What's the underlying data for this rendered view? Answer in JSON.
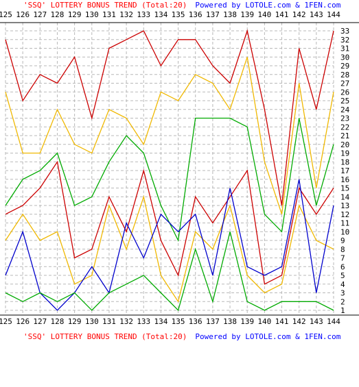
{
  "chart_data": {
    "type": "line",
    "title": "'SSQ' LOTTERY BONUS TREND (Total:20)",
    "title_suffix": "Powered by LOTOLE.com & 1FEN.com",
    "x": [
      "125",
      "126",
      "127",
      "128",
      "129",
      "130",
      "131",
      "132",
      "133",
      "134",
      "135",
      "136",
      "137",
      "138",
      "139",
      "140",
      "141",
      "142",
      "143",
      "144"
    ],
    "yticks": [
      "1",
      "2",
      "3",
      "4",
      "5",
      "6",
      "7",
      "8",
      "9",
      "10",
      "11",
      "12",
      "13",
      "14",
      "15",
      "16",
      "17",
      "18",
      "19",
      "20",
      "21",
      "22",
      "23",
      "24",
      "25",
      "26",
      "27",
      "28",
      "29",
      "30",
      "31",
      "32",
      "33"
    ],
    "ylim": [
      1,
      33
    ],
    "grid": true,
    "series": [
      {
        "color": "#cc0000",
        "values": [
          32,
          25,
          28,
          27,
          30,
          23,
          31,
          32,
          33,
          29,
          32,
          32,
          29,
          27,
          33,
          24,
          13,
          31,
          24,
          33
        ]
      },
      {
        "color": "#f0b800",
        "values": [
          26,
          19,
          19,
          24,
          20,
          19,
          24,
          23,
          20,
          26,
          25,
          28,
          27,
          24,
          30,
          18,
          12,
          27,
          15,
          26
        ]
      },
      {
        "color": "#00aa00",
        "values": [
          13,
          16,
          17,
          19,
          13,
          14,
          18,
          21,
          19,
          13,
          9,
          23,
          23,
          23,
          22,
          12,
          10,
          23,
          13,
          20
        ]
      },
      {
        "color": "#cc0000",
        "values": [
          12,
          13,
          15,
          18,
          7,
          8,
          14,
          10,
          17,
          9,
          5,
          14,
          11,
          14,
          17,
          4,
          5,
          15,
          12,
          15
        ]
      },
      {
        "color": "#f0b800",
        "values": [
          9,
          12,
          9,
          10,
          4,
          5,
          13,
          8,
          14,
          5,
          2,
          10,
          8,
          13,
          5,
          3,
          4,
          13,
          9,
          8
        ]
      },
      {
        "color": "#0000cc",
        "values": [
          5,
          10,
          3,
          1,
          3,
          6,
          3,
          11,
          7,
          12,
          10,
          12,
          5,
          15,
          6,
          5,
          6,
          16,
          3,
          13
        ]
      },
      {
        "color": "#00aa00",
        "values": [
          3,
          2,
          3,
          2,
          3,
          1,
          3,
          4,
          5,
          3,
          1,
          8,
          2,
          10,
          2,
          1,
          2,
          2,
          2,
          1
        ]
      }
    ]
  }
}
